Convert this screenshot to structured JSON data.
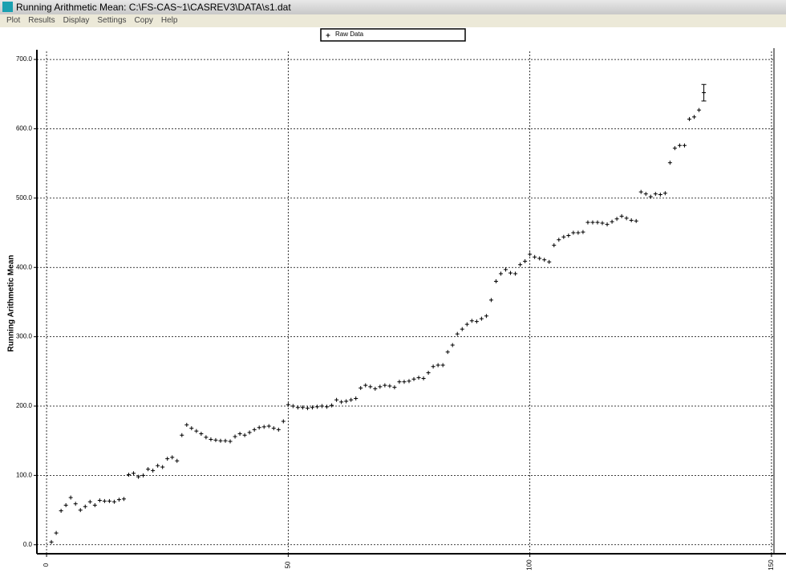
{
  "window": {
    "title": "Running Arithmetic Mean:  C:\\FS-CAS~1\\CASREV3\\DATA\\s1.dat",
    "menu": [
      "Plot",
      "Results",
      "Display",
      "Settings",
      "Copy",
      "Help"
    ]
  },
  "chart_data": {
    "type": "scatter",
    "y_label": "Running Arithmetic Mean",
    "xlim": [
      -2,
      153
    ],
    "ylim": [
      -13,
      714
    ],
    "grid": true,
    "xticks": [
      0,
      50,
      100,
      150
    ],
    "yticks": [
      {
        "value": 0,
        "label": "0.0"
      },
      {
        "value": 100,
        "label": "100.0"
      },
      {
        "value": 200,
        "label": "200.0"
      },
      {
        "value": 300,
        "label": "300.0"
      },
      {
        "value": 400,
        "label": "400.0"
      },
      {
        "value": 500,
        "label": "500.0"
      },
      {
        "value": 600,
        "label": "600.0"
      },
      {
        "value": 700,
        "label": "700.0"
      }
    ],
    "series": [
      {
        "name": "Raw Data",
        "color": "#000000",
        "x": [
          1,
          2,
          3,
          4,
          5,
          6,
          7,
          8,
          9,
          10,
          11,
          12,
          13,
          14,
          15,
          16,
          17,
          18,
          19,
          20,
          21,
          22,
          23,
          24,
          25,
          26,
          27,
          28,
          29,
          30,
          31,
          32,
          33,
          34,
          35,
          36,
          37,
          38,
          39,
          40,
          41,
          42,
          43,
          44,
          45,
          46,
          47,
          48,
          49,
          50,
          51,
          52,
          53,
          54,
          55,
          56,
          57,
          58,
          59,
          60,
          61,
          62,
          63,
          64,
          65,
          66,
          67,
          68,
          69,
          70,
          71,
          72,
          73,
          74,
          75,
          76,
          77,
          78,
          79,
          80,
          81,
          82,
          83,
          84,
          85,
          86,
          87,
          88,
          89,
          90,
          91,
          92,
          93,
          94,
          95,
          96,
          97,
          98,
          99,
          100,
          101,
          102,
          103,
          104,
          105,
          106,
          107,
          108,
          109,
          110,
          111,
          112,
          113,
          114,
          115,
          116,
          117,
          118,
          119,
          120,
          121,
          122,
          123,
          124,
          125,
          126,
          127,
          128,
          129,
          130,
          131,
          132,
          133,
          134,
          135
        ],
        "values": [
          4,
          17,
          49,
          57,
          68,
          59,
          50,
          55,
          62,
          57,
          64,
          63,
          63,
          62,
          65,
          66,
          101,
          103,
          98,
          100,
          109,
          107,
          114,
          112,
          124,
          126,
          121,
          158,
          173,
          168,
          164,
          160,
          155,
          152,
          151,
          150,
          150,
          149,
          156,
          160,
          158,
          162,
          166,
          169,
          170,
          171,
          168,
          166,
          178,
          202,
          200,
          198,
          198,
          197,
          198,
          199,
          200,
          199,
          201,
          209,
          206,
          207,
          209,
          211,
          226,
          230,
          228,
          225,
          228,
          230,
          229,
          227,
          235,
          235,
          236,
          239,
          241,
          240,
          248,
          257,
          259,
          259,
          278,
          288,
          304,
          311,
          318,
          323,
          322,
          326,
          330,
          353,
          380,
          391,
          397,
          392,
          391,
          404,
          409,
          419,
          415,
          413,
          411,
          408,
          432,
          440,
          444,
          446,
          450,
          450,
          451,
          465,
          465,
          465,
          464,
          462,
          466,
          470,
          474,
          471,
          468,
          467,
          509,
          506,
          502,
          506,
          505,
          507,
          551,
          572,
          576,
          576,
          614,
          617,
          627
        ],
        "error_point": {
          "x": 136,
          "value": 652,
          "error": 12
        }
      }
    ]
  }
}
